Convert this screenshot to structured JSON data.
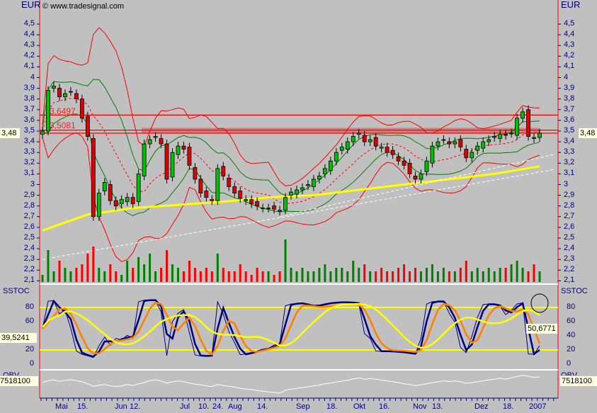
{
  "header": {
    "currency_left": "EUR",
    "currency_right": "EUR",
    "copyright": "© www.tradesignal.com"
  },
  "chart_data": {
    "type": "candlestick",
    "price_axis": {
      "ticks": [
        "4,5",
        "4,4",
        "4,3",
        "4,2",
        "4,1",
        "4",
        "3,9",
        "3,8",
        "3,7",
        "3,6",
        "3,5",
        "3,4",
        "3,3",
        "3,2",
        "3,1",
        "3",
        "2,9",
        "2,8",
        "2,7",
        "2,6",
        "2,5",
        "2,4",
        "2,3",
        "2,2",
        "2,1"
      ],
      "range": [
        2.1,
        4.5
      ]
    },
    "last_price": "3,48",
    "closes": [
      3.5,
      3.88,
      3.92,
      3.82,
      3.85,
      3.87,
      3.8,
      3.62,
      3.45,
      2.7,
      2.92,
      3.02,
      2.85,
      2.8,
      2.86,
      2.88,
      2.82,
      3.1,
      3.38,
      3.42,
      3.45,
      3.38,
      3.05,
      3.3,
      3.36,
      3.33,
      3.18,
      3.05,
      2.92,
      2.88,
      2.85,
      3.15,
      3.08,
      2.98,
      2.92,
      2.87,
      2.86,
      2.82,
      2.8,
      2.78,
      2.78,
      2.77,
      2.76,
      2.88,
      2.93,
      2.95,
      2.97,
      3.0,
      3.05,
      3.08,
      3.15,
      3.22,
      3.3,
      3.35,
      3.4,
      3.45,
      3.48,
      3.4,
      3.42,
      3.36,
      3.35,
      3.3,
      3.28,
      3.22,
      3.18,
      3.1,
      3.05,
      3.1,
      3.22,
      3.36,
      3.4,
      3.42,
      3.38,
      3.4,
      3.35,
      3.25,
      3.3,
      3.36,
      3.4,
      3.42,
      3.45,
      3.47,
      3.46,
      3.48,
      3.62,
      3.68,
      3.45,
      3.44,
      3.48
    ],
    "volume": [
      2,
      9,
      3,
      6,
      4,
      3,
      4,
      5,
      8,
      10,
      4,
      3,
      5,
      3,
      2,
      6,
      4,
      7,
      5,
      8,
      3,
      4,
      9,
      5,
      4,
      3,
      6,
      4,
      3,
      4,
      3,
      8,
      4,
      3,
      3,
      5,
      3,
      2,
      4,
      3,
      3,
      2,
      3,
      12,
      4,
      3,
      4,
      3,
      3,
      4,
      5,
      3,
      4,
      4,
      3,
      6,
      4,
      5,
      3,
      3,
      4,
      3,
      3,
      4,
      5,
      3,
      4,
      3,
      4,
      5,
      3,
      4,
      3,
      3,
      4,
      6,
      3,
      4,
      3,
      4,
      3,
      4,
      4,
      5,
      6,
      4,
      3,
      5,
      3
    ],
    "ma_long": [
      2.57,
      2.72,
      2.78,
      2.81,
      2.84,
      2.88,
      2.9,
      2.95,
      3.0,
      3.05,
      3.1,
      3.17
    ],
    "horizontal_levels": [
      {
        "label": "3,6497",
        "value": 3.6497
      },
      {
        "label": "3,5081",
        "value": 3.5081
      }
    ],
    "resistance_zone": [
      3.48,
      3.53
    ],
    "trendlines": [
      {
        "from": [
          0,
          2.3
        ],
        "to": [
          88,
          3.14
        ]
      },
      {
        "from": [
          42,
          2.7
        ],
        "to": [
          88,
          3.28
        ]
      }
    ],
    "dates": [
      "Mai",
      "15.",
      "Jun",
      "12.",
      "Jul",
      "10.",
      "24.",
      "Aug",
      "14.",
      "Sep",
      "18.",
      "Okt",
      "16.",
      "Nov",
      "13.",
      "Dez",
      "18.",
      "2007"
    ]
  },
  "stochastic": {
    "title": "SSTOC",
    "ticks": [
      "80",
      "60",
      "40",
      "20",
      "0"
    ],
    "value_left": "39,5241",
    "value_right": "50,6771",
    "levels": [
      20,
      80
    ]
  },
  "obv": {
    "title": "OBV",
    "value": "7518100"
  },
  "colors": {
    "background": "#c0c0c0",
    "axis": "#ff0000",
    "bull": "#00c000",
    "bear": "#e00000",
    "bollinger": "#ff0000",
    "band": "#008000",
    "ma": "#ffff00",
    "stoch_fast": "#000080",
    "stoch_slow": "#ff8000",
    "text": "#000080"
  }
}
